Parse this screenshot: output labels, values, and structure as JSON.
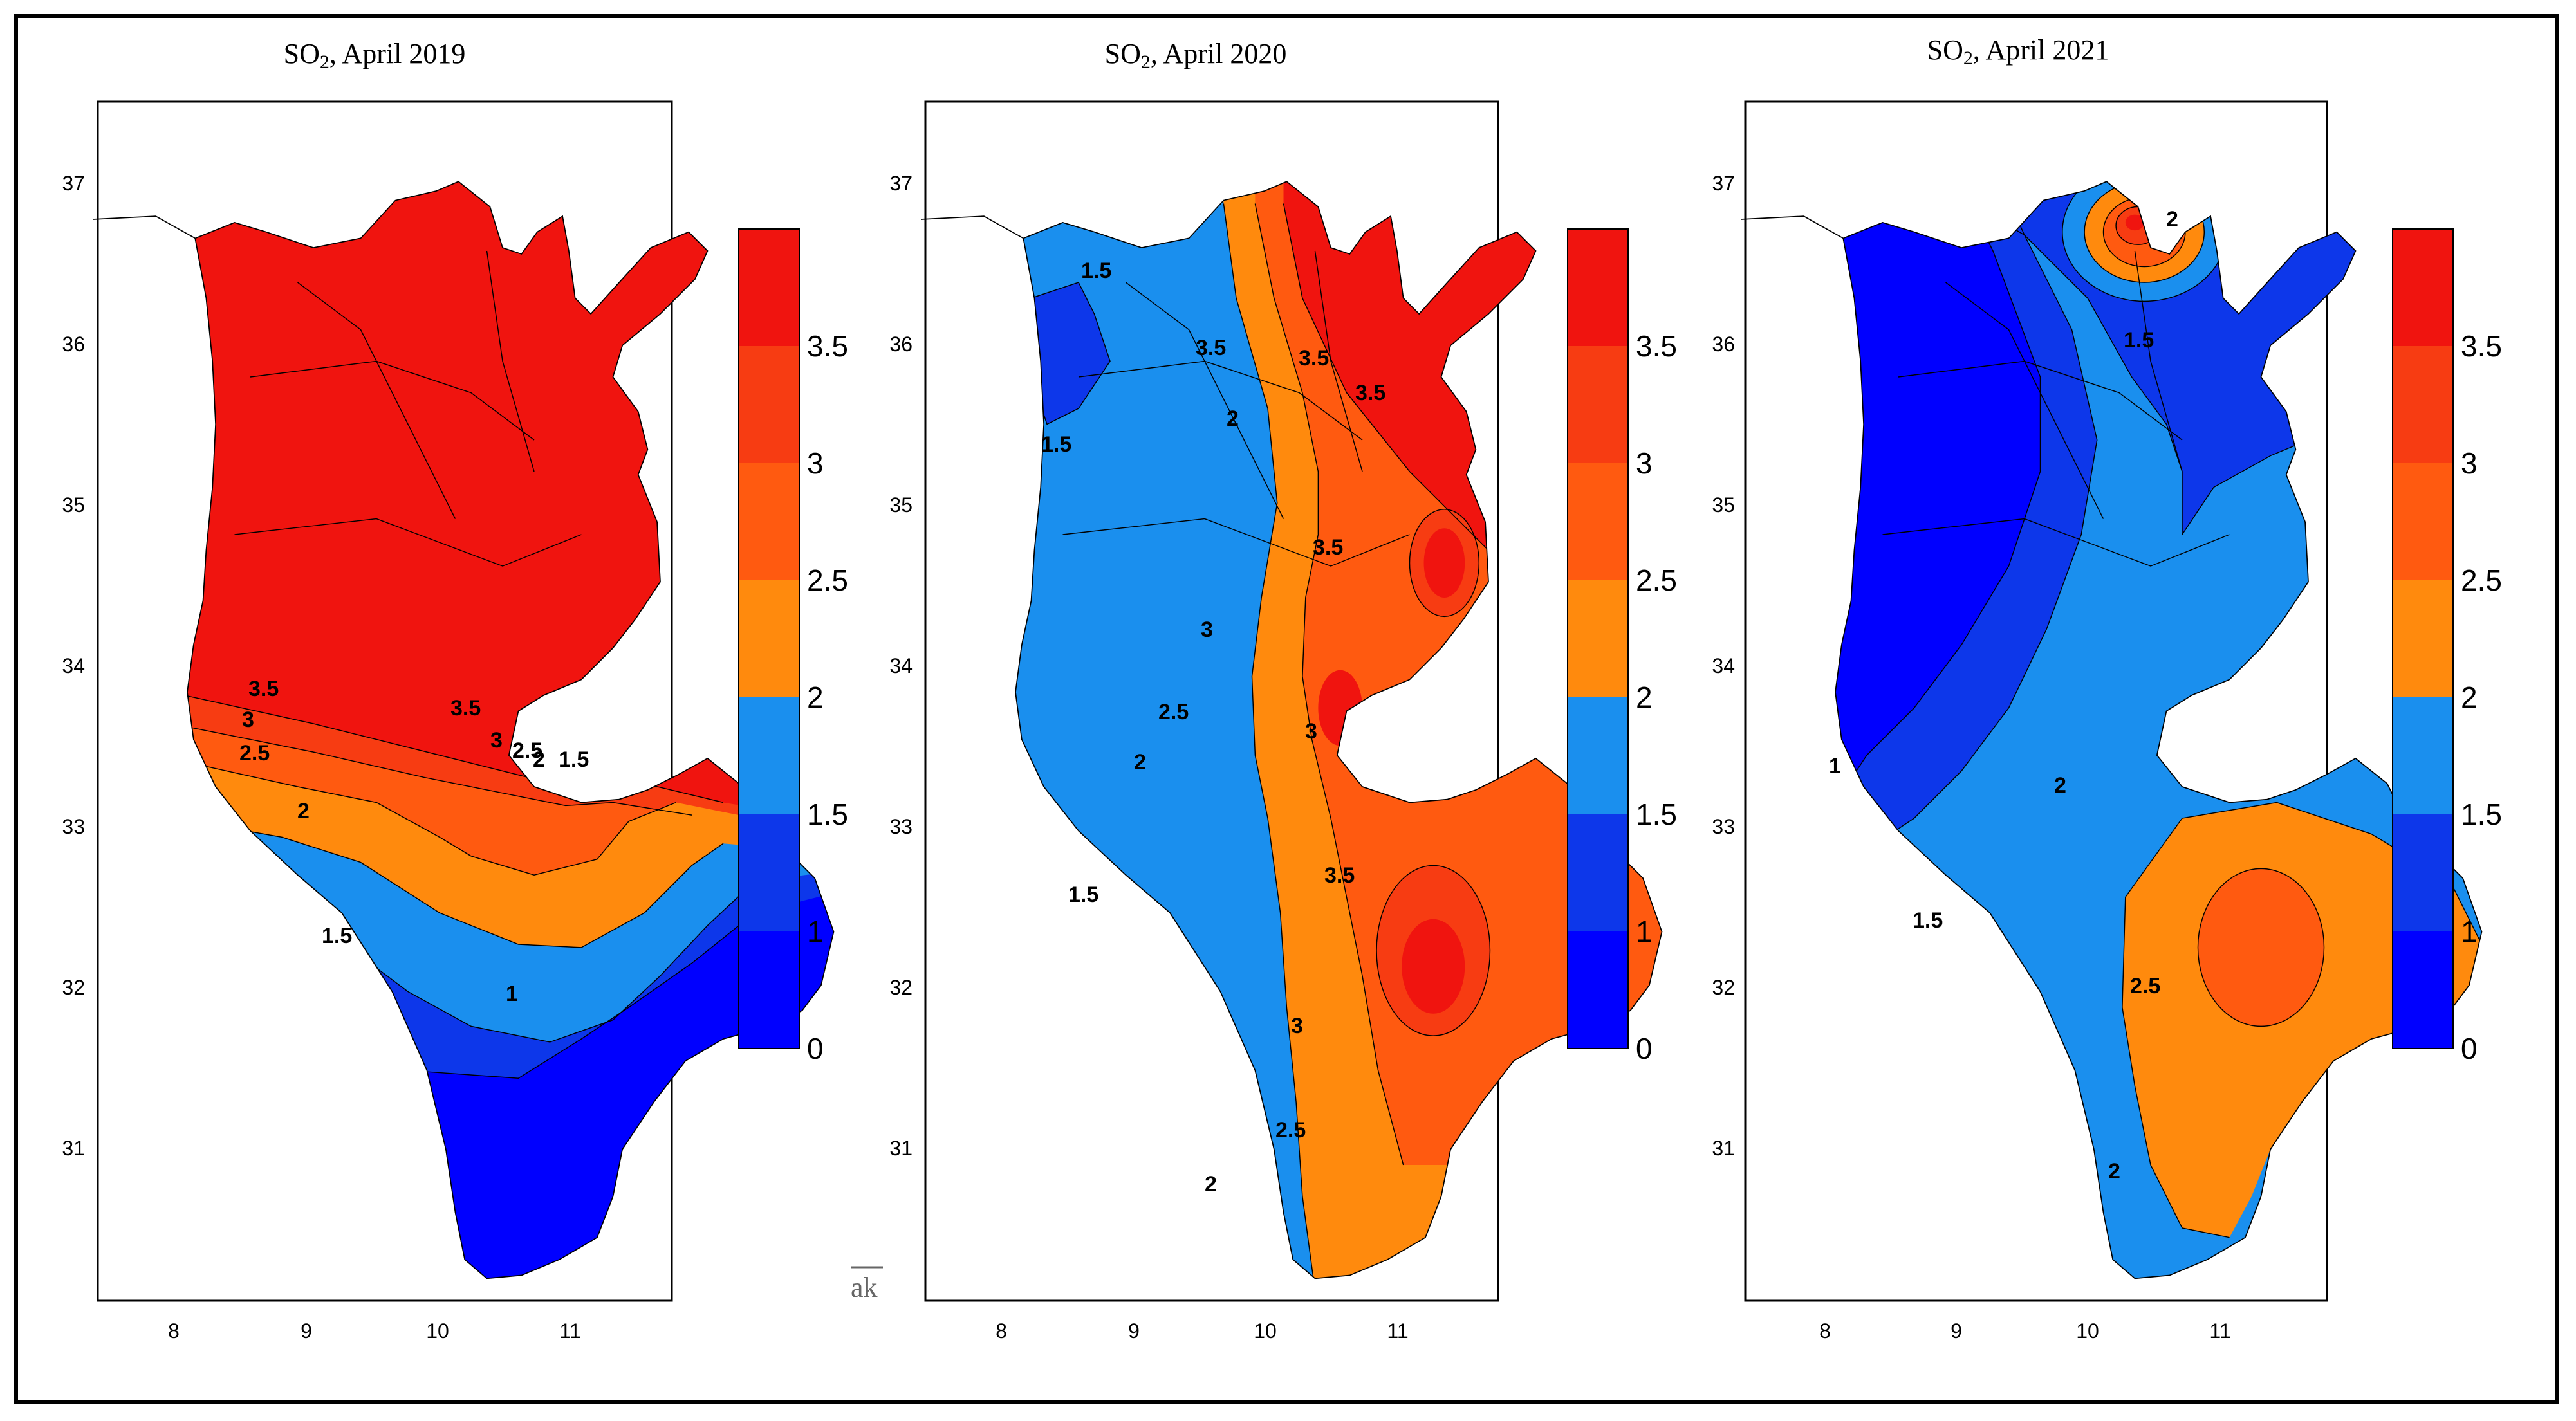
{
  "figure": {
    "watermark": "ak",
    "colors": {
      "lt1": "#0000ff",
      "1_1.5": "#0d37ea",
      "1.5_2": "#1a8fee",
      "2_2.5": "#ff8a0d",
      "2.5_3": "#ff5a10",
      "3_3.5": "#f73c12",
      "gt3.5": "#f0140f",
      "land_outline": "#000000"
    }
  },
  "maps": [
    {
      "title_main": "SO",
      "title_sub": "2",
      "title_rest": ", April 2019",
      "x_ticks": [
        "8",
        "9",
        "10",
        "11"
      ],
      "y_ticks": [
        "37",
        "36",
        "35",
        "34",
        "33",
        "32",
        "31"
      ],
      "colorbar": {
        "min": 0,
        "max": 4,
        "levels": [
          "0",
          "1",
          "1.5",
          "2",
          "2.5",
          "3",
          "3.5"
        ]
      },
      "contour_labels": [
        "3.5",
        "3",
        "2.5",
        "2",
        "1.5",
        "1",
        "3.5",
        "3",
        "2.5",
        "2",
        "1.5"
      ]
    },
    {
      "title_main": "SO",
      "title_sub": "2",
      "title_rest": ", April 2020",
      "x_ticks": [
        "8",
        "9",
        "10",
        "11"
      ],
      "y_ticks": [
        "37",
        "36",
        "35",
        "34",
        "33",
        "32",
        "31"
      ],
      "colorbar": {
        "min": 0,
        "max": 4,
        "levels": [
          "0",
          "1",
          "1.5",
          "2",
          "2.5",
          "3",
          "3.5"
        ]
      },
      "contour_labels": [
        "1.5",
        "1.5",
        "3.5",
        "3.5",
        "3.5",
        "2",
        "3.5",
        "3",
        "2.5",
        "2",
        "3",
        "3.5",
        "1.5",
        "3",
        "2.5",
        "2"
      ]
    },
    {
      "title_main": "SO",
      "title_sub": "2",
      "title_rest": ", April 2021",
      "x_ticks": [
        "8",
        "9",
        "10",
        "11"
      ],
      "y_ticks": [
        "37",
        "36",
        "35",
        "34",
        "33",
        "32",
        "31"
      ],
      "colorbar": {
        "min": 0,
        "max": 4,
        "levels": [
          "0",
          "1",
          "1.5",
          "2",
          "2.5",
          "3",
          "3.5"
        ]
      },
      "contour_labels": [
        "2",
        "1.5",
        "1",
        "2",
        "1.5",
        "2.5",
        "2"
      ]
    }
  ]
}
